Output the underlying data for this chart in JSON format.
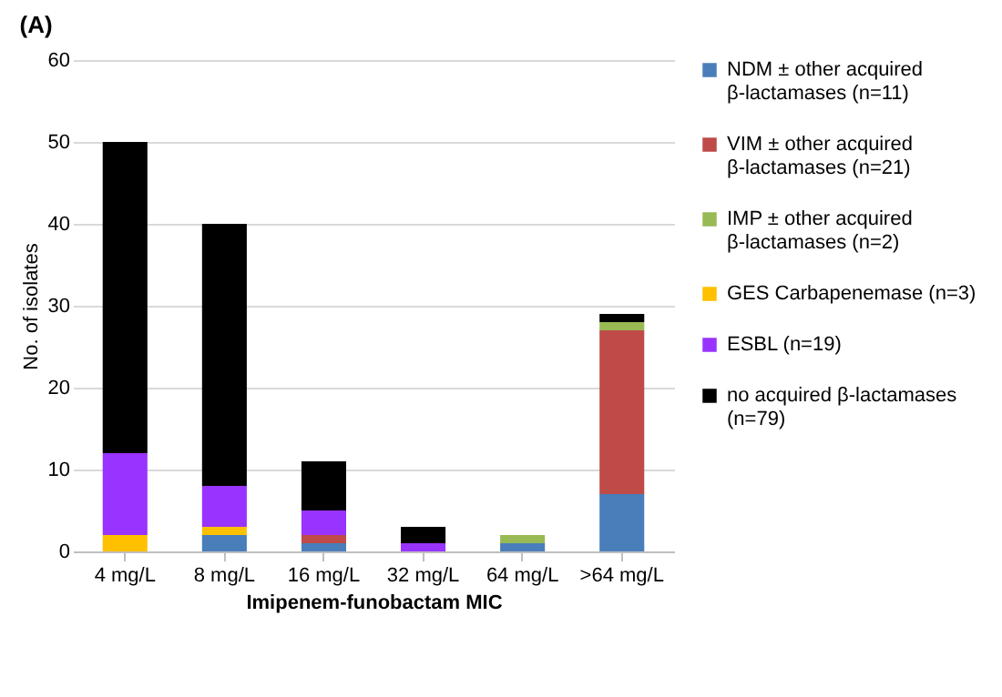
{
  "chart_data": {
    "type": "bar",
    "stacked": true,
    "title": "(A)",
    "xlabel": "Imipenem-funobactam MIC",
    "ylabel": "No. of isolates",
    "categories": [
      "4 mg/L",
      "8 mg/L",
      "16 mg/L",
      "32 mg/L",
      "64 mg/L",
      ">64 mg/L"
    ],
    "series": [
      {
        "name": "NDM ± other acquired β-lactamases (n=11)",
        "color": "#4a7ebb",
        "values": [
          0,
          2,
          1,
          0,
          1,
          7
        ]
      },
      {
        "name": "VIM ± other acquired β-lactamases (n=21)",
        "color": "#be4b48",
        "values": [
          0,
          0,
          1,
          0,
          0,
          20
        ]
      },
      {
        "name": "IMP ± other acquired β-lactamases (n=2)",
        "color": "#98b954",
        "values": [
          0,
          0,
          0,
          0,
          1,
          1
        ]
      },
      {
        "name": "GES Carbapenemase (n=3)",
        "color": "#ffc000",
        "values": [
          2,
          1,
          0,
          0,
          0,
          0
        ]
      },
      {
        "name": "ESBL (n=19)",
        "color": "#9933ff",
        "values": [
          10,
          5,
          3,
          1,
          0,
          0
        ]
      },
      {
        "name": "no acquired β-lactamases (n=79)",
        "color": "#000000",
        "values": [
          38,
          32,
          6,
          2,
          0,
          1
        ]
      }
    ],
    "ylim": [
      0,
      60
    ],
    "yticks": [
      0,
      10,
      20,
      30,
      40,
      50,
      60
    ],
    "grid": "y",
    "legend": "right"
  }
}
